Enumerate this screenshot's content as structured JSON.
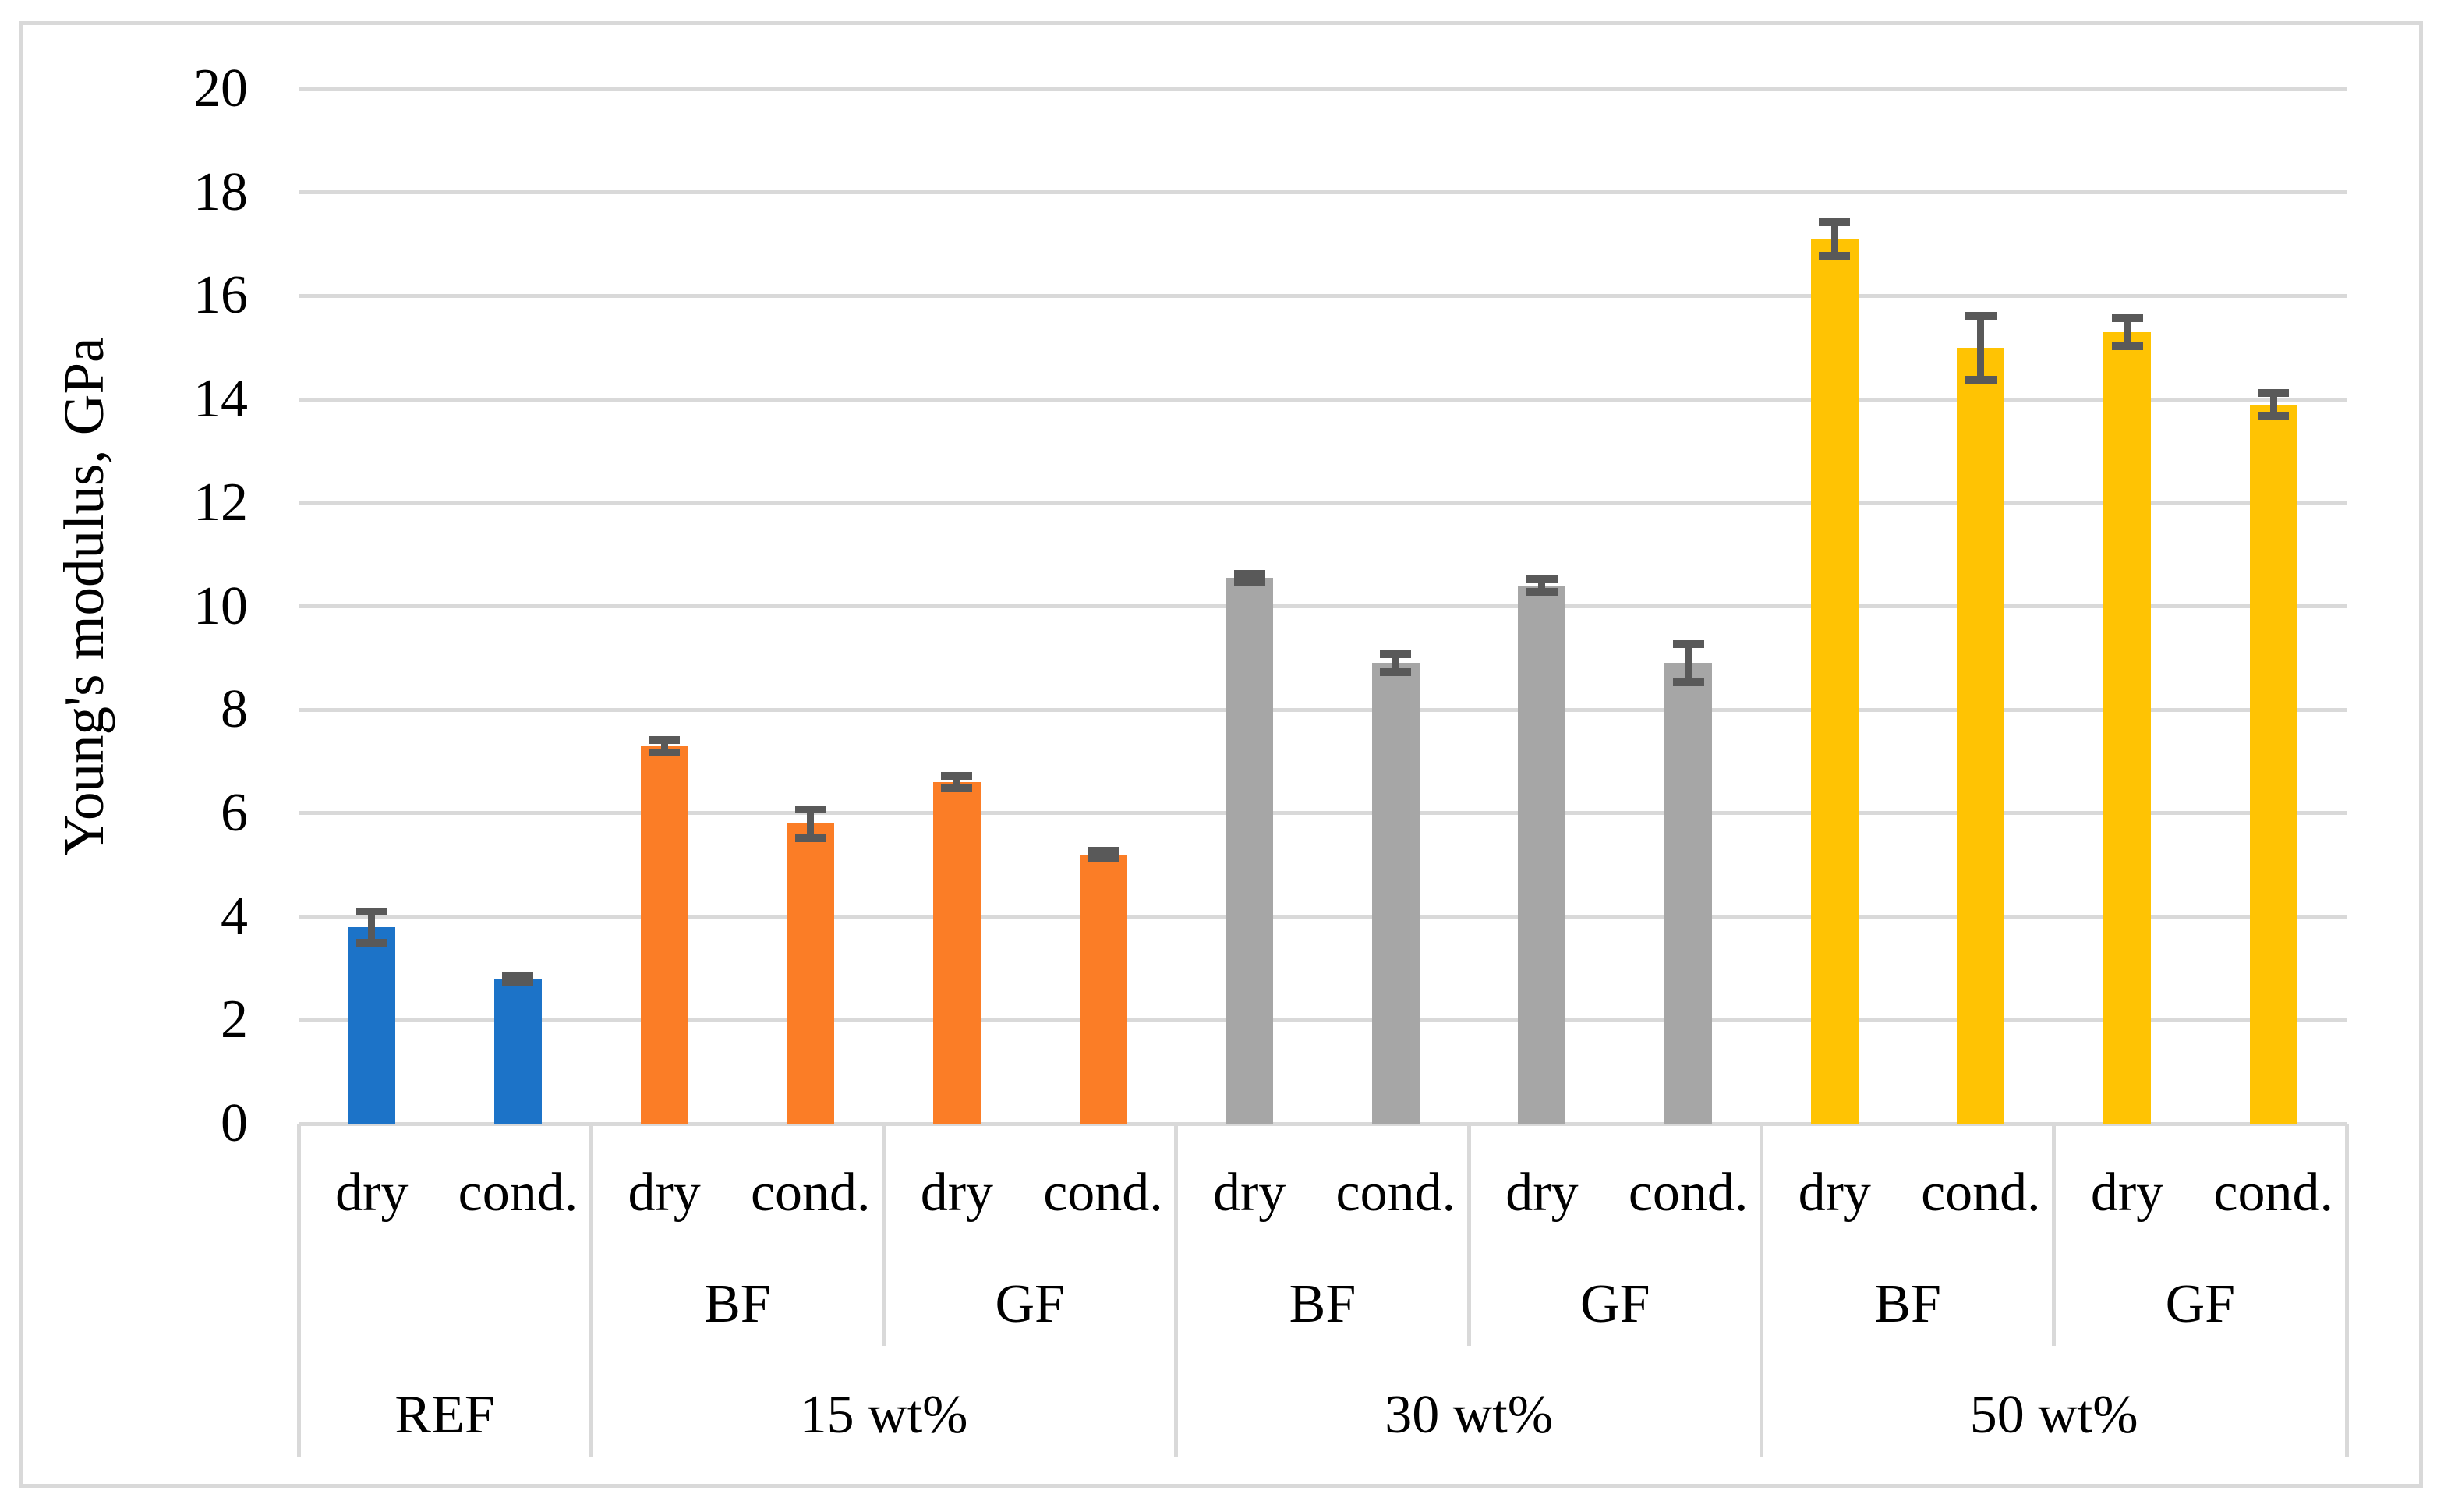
{
  "chart_data": {
    "type": "bar",
    "title": "",
    "ylabel": "Young's modulus, GPa",
    "xlabel": "",
    "ylim": [
      0,
      20
    ],
    "y_tick_step": 2,
    "y_tick_labels": [
      "0",
      "2",
      "4",
      "6",
      "8",
      "10",
      "12",
      "14",
      "16",
      "18",
      "20"
    ],
    "grid": true,
    "legend": "none",
    "conditions": [
      "dry",
      "cond."
    ],
    "groups": [
      {
        "label": "REF",
        "color": "#1C73C8",
        "subgroups": [
          {
            "label": "",
            "bars": [
              {
                "condition": "dry",
                "value": 3.8,
                "error": 0.3
              },
              {
                "condition": "cond.",
                "value": 2.8,
                "error": 0.07
              }
            ]
          }
        ]
      },
      {
        "label": "15 wt%",
        "color": "#FB7D26",
        "subgroups": [
          {
            "label": "BF",
            "bars": [
              {
                "condition": "dry",
                "value": 7.3,
                "error": 0.12
              },
              {
                "condition": "cond.",
                "value": 5.8,
                "error": 0.28
              }
            ]
          },
          {
            "label": "GF",
            "bars": [
              {
                "condition": "dry",
                "value": 6.6,
                "error": 0.12
              },
              {
                "condition": "cond.",
                "value": 5.2,
                "error": 0.08
              }
            ]
          }
        ]
      },
      {
        "label": "30 wt%",
        "color": "#A6A6A6",
        "subgroups": [
          {
            "label": "BF",
            "bars": [
              {
                "condition": "dry",
                "value": 10.55,
                "error": 0.08
              },
              {
                "condition": "cond.",
                "value": 8.9,
                "error": 0.18
              }
            ]
          },
          {
            "label": "GF",
            "bars": [
              {
                "condition": "dry",
                "value": 10.4,
                "error": 0.12
              },
              {
                "condition": "cond.",
                "value": 8.9,
                "error": 0.37
              }
            ]
          }
        ]
      },
      {
        "label": "50 wt%",
        "color": "#FFC303",
        "subgroups": [
          {
            "label": "BF",
            "bars": [
              {
                "condition": "dry",
                "value": 17.1,
                "error": 0.33
              },
              {
                "condition": "cond.",
                "value": 15.0,
                "error": 0.62
              }
            ]
          },
          {
            "label": "GF",
            "bars": [
              {
                "condition": "dry",
                "value": 15.3,
                "error": 0.27
              },
              {
                "condition": "cond.",
                "value": 13.9,
                "error": 0.22
              }
            ]
          }
        ]
      }
    ],
    "error_bar_color": "#595959",
    "gridline_color": "#D9D9D9",
    "axis_line_color": "#D9D9D9"
  }
}
